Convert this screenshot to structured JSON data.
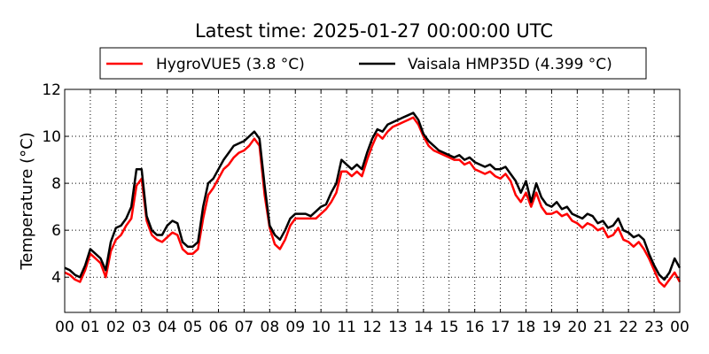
{
  "chart_data": {
    "type": "line",
    "title": "Latest time: 2025-01-27 00:00:00 UTC",
    "xlabel": "",
    "ylabel": "Temperature (°C)",
    "xlim": [
      0,
      24
    ],
    "ylim": [
      2.5,
      12
    ],
    "x_ticks": [
      0,
      1,
      2,
      3,
      4,
      5,
      6,
      7,
      8,
      9,
      10,
      11,
      12,
      13,
      14,
      15,
      16,
      17,
      18,
      19,
      20,
      21,
      22,
      23,
      24
    ],
    "x_tick_labels": [
      "00",
      "01",
      "02",
      "03",
      "04",
      "05",
      "06",
      "07",
      "08",
      "09",
      "10",
      "11",
      "12",
      "13",
      "14",
      "15",
      "16",
      "17",
      "18",
      "19",
      "20",
      "21",
      "22",
      "23",
      "00"
    ],
    "y_ticks": [
      4,
      6,
      8,
      10,
      12
    ],
    "y_tick_labels": [
      "4",
      "6",
      "8",
      "10",
      "12"
    ],
    "grid": true,
    "legend_position": "top",
    "series": [
      {
        "name": "HygroVUE5 (3.8 °C)",
        "color": "#ff0000",
        "x": [
          0,
          0.2,
          0.4,
          0.6,
          0.8,
          1.0,
          1.2,
          1.4,
          1.6,
          1.8,
          2.0,
          2.2,
          2.4,
          2.6,
          2.8,
          3.0,
          3.2,
          3.4,
          3.6,
          3.8,
          4.0,
          4.2,
          4.4,
          4.6,
          4.8,
          5.0,
          5.2,
          5.4,
          5.6,
          5.8,
          6.0,
          6.2,
          6.4,
          6.6,
          6.8,
          7.0,
          7.2,
          7.4,
          7.6,
          7.8,
          8.0,
          8.2,
          8.4,
          8.6,
          8.8,
          9.0,
          9.2,
          9.4,
          9.6,
          9.8,
          10.0,
          10.2,
          10.4,
          10.6,
          10.8,
          11.0,
          11.2,
          11.4,
          11.6,
          11.8,
          12.0,
          12.2,
          12.4,
          12.6,
          12.8,
          13.0,
          13.2,
          13.4,
          13.6,
          13.8,
          14.0,
          14.2,
          14.4,
          14.6,
          14.8,
          15.0,
          15.2,
          15.4,
          15.6,
          15.8,
          16.0,
          16.2,
          16.4,
          16.6,
          16.8,
          17.0,
          17.2,
          17.4,
          17.6,
          17.8,
          18.0,
          18.2,
          18.4,
          18.6,
          18.8,
          19.0,
          19.2,
          19.4,
          19.6,
          19.8,
          20.0,
          20.2,
          20.4,
          20.6,
          20.8,
          21.0,
          21.2,
          21.4,
          21.6,
          21.8,
          22.0,
          22.2,
          22.4,
          22.6,
          22.8,
          23.0,
          23.2,
          23.4,
          23.6,
          23.8,
          24.0
        ],
        "values": [
          4.2,
          4.1,
          3.9,
          3.8,
          4.3,
          5.0,
          4.8,
          4.6,
          4.0,
          5.1,
          5.6,
          5.8,
          6.2,
          6.5,
          7.9,
          8.2,
          6.4,
          5.8,
          5.6,
          5.5,
          5.7,
          5.9,
          5.8,
          5.2,
          5.0,
          5.0,
          5.2,
          6.5,
          7.5,
          7.8,
          8.2,
          8.6,
          8.8,
          9.1,
          9.3,
          9.4,
          9.6,
          9.9,
          9.6,
          7.5,
          6.1,
          5.4,
          5.2,
          5.6,
          6.2,
          6.5,
          6.5,
          6.5,
          6.5,
          6.5,
          6.7,
          6.9,
          7.2,
          7.6,
          8.5,
          8.5,
          8.3,
          8.5,
          8.3,
          9.0,
          9.6,
          10.1,
          9.9,
          10.2,
          10.4,
          10.5,
          10.6,
          10.7,
          10.8,
          10.5,
          10.0,
          9.6,
          9.4,
          9.3,
          9.2,
          9.1,
          9.0,
          9.0,
          8.8,
          8.9,
          8.6,
          8.5,
          8.4,
          8.5,
          8.3,
          8.2,
          8.4,
          8.1,
          7.5,
          7.2,
          7.6,
          7.0,
          7.6,
          7.0,
          6.7,
          6.7,
          6.8,
          6.6,
          6.7,
          6.4,
          6.3,
          6.1,
          6.3,
          6.2,
          6.0,
          6.1,
          5.7,
          5.8,
          6.1,
          5.6,
          5.5,
          5.3,
          5.5,
          5.2,
          4.8,
          4.3,
          3.8,
          3.6,
          3.9,
          4.2,
          3.8
        ]
      },
      {
        "name": "Vaisala HMP35D (4.399 °C)",
        "color": "#000000",
        "x": [
          0,
          0.2,
          0.4,
          0.6,
          0.8,
          1.0,
          1.2,
          1.4,
          1.6,
          1.8,
          2.0,
          2.2,
          2.4,
          2.6,
          2.8,
          3.0,
          3.2,
          3.4,
          3.6,
          3.8,
          4.0,
          4.2,
          4.4,
          4.6,
          4.8,
          5.0,
          5.2,
          5.4,
          5.6,
          5.8,
          6.0,
          6.2,
          6.4,
          6.6,
          6.8,
          7.0,
          7.2,
          7.4,
          7.6,
          7.8,
          8.0,
          8.2,
          8.4,
          8.6,
          8.8,
          9.0,
          9.2,
          9.4,
          9.6,
          9.8,
          10.0,
          10.2,
          10.4,
          10.6,
          10.8,
          11.0,
          11.2,
          11.4,
          11.6,
          11.8,
          12.0,
          12.2,
          12.4,
          12.6,
          12.8,
          13.0,
          13.2,
          13.4,
          13.6,
          13.8,
          14.0,
          14.2,
          14.4,
          14.6,
          14.8,
          15.0,
          15.2,
          15.4,
          15.6,
          15.8,
          16.0,
          16.2,
          16.4,
          16.6,
          16.8,
          17.0,
          17.2,
          17.4,
          17.6,
          17.8,
          18.0,
          18.2,
          18.4,
          18.6,
          18.8,
          19.0,
          19.2,
          19.4,
          19.6,
          19.8,
          20.0,
          20.2,
          20.4,
          20.6,
          20.8,
          21.0,
          21.2,
          21.4,
          21.6,
          21.8,
          22.0,
          22.2,
          22.4,
          22.6,
          22.8,
          23.0,
          23.2,
          23.4,
          23.6,
          23.8,
          24.0
        ],
        "values": [
          4.4,
          4.3,
          4.1,
          4.0,
          4.5,
          5.2,
          5.0,
          4.8,
          4.3,
          5.5,
          6.1,
          6.2,
          6.5,
          7.0,
          8.6,
          8.6,
          6.6,
          6.0,
          5.8,
          5.8,
          6.2,
          6.4,
          6.3,
          5.5,
          5.3,
          5.3,
          5.5,
          7.0,
          8.0,
          8.2,
          8.6,
          9.0,
          9.3,
          9.6,
          9.7,
          9.8,
          10.0,
          10.2,
          9.9,
          7.9,
          6.2,
          5.8,
          5.6,
          6.0,
          6.5,
          6.7,
          6.7,
          6.7,
          6.6,
          6.8,
          7.0,
          7.1,
          7.6,
          8.0,
          9.0,
          8.8,
          8.6,
          8.8,
          8.6,
          9.3,
          9.9,
          10.3,
          10.2,
          10.5,
          10.6,
          10.7,
          10.8,
          10.9,
          11.0,
          10.7,
          10.1,
          9.8,
          9.6,
          9.4,
          9.3,
          9.2,
          9.1,
          9.2,
          9.0,
          9.1,
          8.9,
          8.8,
          8.7,
          8.8,
          8.6,
          8.6,
          8.7,
          8.4,
          8.1,
          7.6,
          8.1,
          7.2,
          8.0,
          7.4,
          7.1,
          7.0,
          7.2,
          6.9,
          7.0,
          6.7,
          6.6,
          6.5,
          6.7,
          6.6,
          6.3,
          6.4,
          6.1,
          6.2,
          6.5,
          6.0,
          5.9,
          5.7,
          5.8,
          5.6,
          5.0,
          4.5,
          4.1,
          3.9,
          4.2,
          4.8,
          4.4
        ]
      }
    ]
  }
}
